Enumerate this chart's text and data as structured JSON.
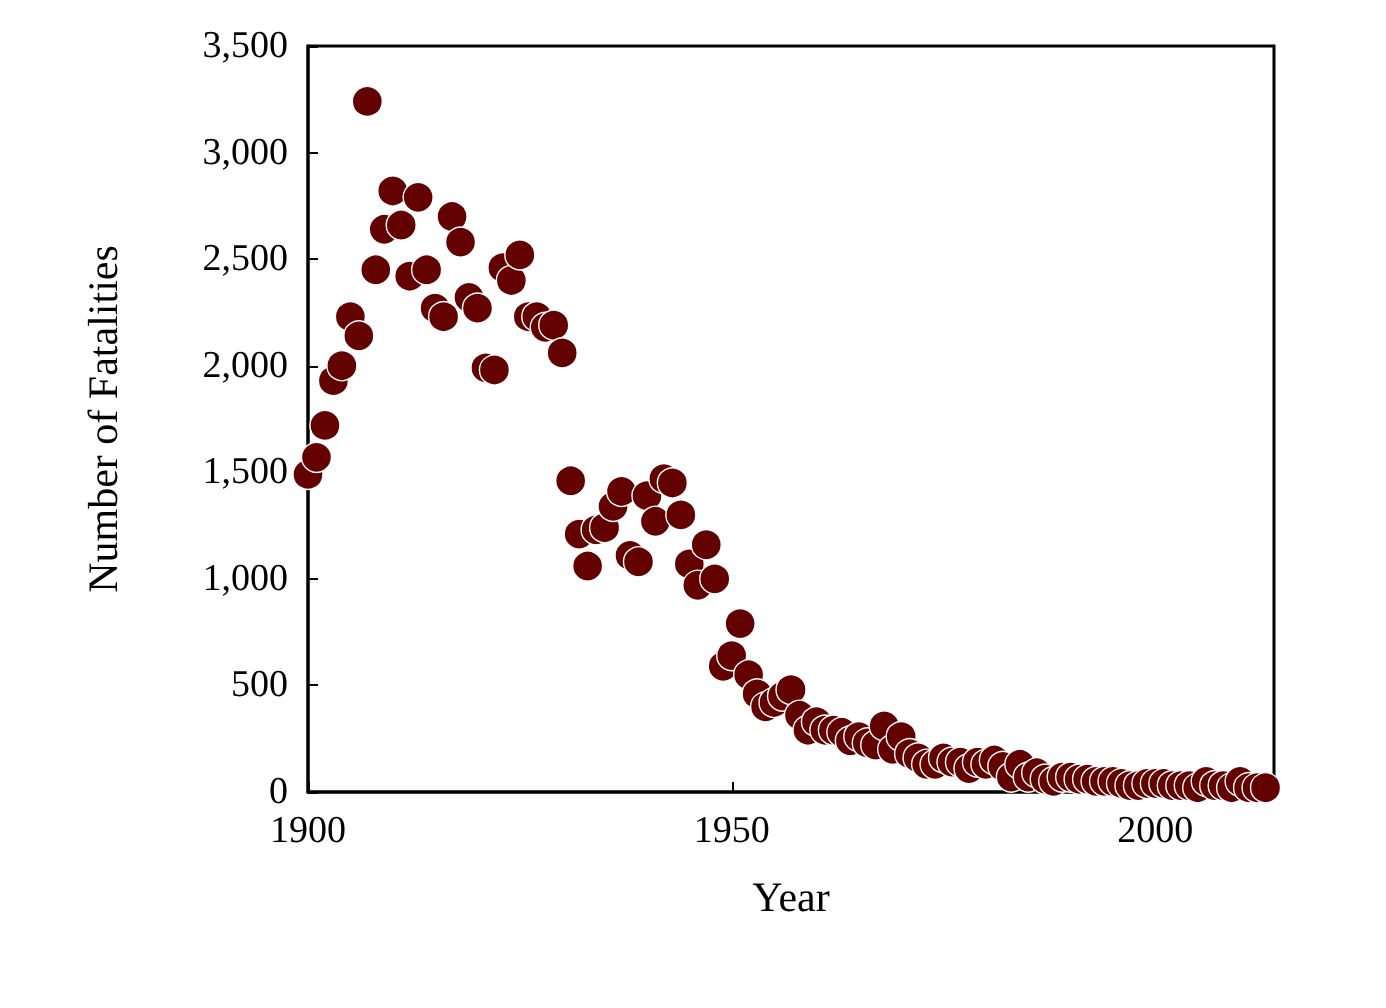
{
  "chart_data": {
    "type": "scatter",
    "xlabel": "Year",
    "ylabel": "Number of Fatalities",
    "marker": "circle",
    "grid": false,
    "xlim": [
      1900,
      2014
    ],
    "xticks": [
      1900,
      1950,
      2000
    ],
    "ylim": [
      0,
      3500
    ],
    "yticks": [
      {
        "value": 0,
        "label": "0"
      },
      {
        "value": 500,
        "label": "500"
      },
      {
        "value": 1000,
        "label": "1,000"
      },
      {
        "value": 1500,
        "label": "1,500"
      },
      {
        "value": 2000,
        "label": "2,000"
      },
      {
        "value": 2500,
        "label": "2,500"
      },
      {
        "value": 3000,
        "label": "3,000"
      },
      {
        "value": 3500,
        "label": "3,500"
      }
    ],
    "series": [
      {
        "color": "#630000",
        "x": [
          1900,
          1901,
          1902,
          1903,
          1904,
          1905,
          1906,
          1907,
          1908,
          1909,
          1910,
          1911,
          1912,
          1913,
          1914,
          1915,
          1916,
          1917,
          1918,
          1919,
          1920,
          1921,
          1922,
          1923,
          1924,
          1925,
          1926,
          1927,
          1928,
          1929,
          1930,
          1931,
          1932,
          1933,
          1934,
          1935,
          1936,
          1937,
          1938,
          1939,
          1940,
          1941,
          1942,
          1943,
          1944,
          1945,
          1946,
          1947,
          1948,
          1949,
          1950,
          1951,
          1952,
          1953,
          1954,
          1955,
          1956,
          1957,
          1958,
          1959,
          1960,
          1961,
          1962,
          1963,
          1964,
          1965,
          1966,
          1967,
          1968,
          1969,
          1970,
          1971,
          1972,
          1973,
          1974,
          1975,
          1976,
          1977,
          1978,
          1979,
          1980,
          1981,
          1982,
          1983,
          1984,
          1985,
          1986,
          1987,
          1988,
          1989,
          1990,
          1991,
          1992,
          1993,
          1994,
          1995,
          1996,
          1997,
          1998,
          1999,
          2000,
          2001,
          2002,
          2003,
          2004,
          2005,
          2006,
          2007,
          2008,
          2009,
          2010,
          2011,
          2012,
          2013
        ],
        "values": [
          1490,
          1570,
          1720,
          1930,
          2000,
          2230,
          2140,
          3240,
          2450,
          2640,
          2820,
          2660,
          2420,
          2790,
          2450,
          2270,
          2230,
          2700,
          2580,
          2320,
          2270,
          1990,
          1980,
          2460,
          2400,
          2520,
          2230,
          2230,
          2180,
          2190,
          2060,
          1460,
          1210,
          1060,
          1230,
          1240,
          1340,
          1410,
          1110,
          1080,
          1390,
          1270,
          1470,
          1450,
          1300,
          1070,
          970,
          1160,
          1000,
          590,
          640,
          790,
          550,
          460,
          400,
          420,
          450,
          480,
          360,
          290,
          330,
          290,
          290,
          280,
          240,
          260,
          230,
          220,
          310,
          200,
          260,
          180,
          160,
          130,
          130,
          160,
          140,
          140,
          110,
          140,
          130,
          150,
          120,
          70,
          130,
          70,
          90,
          60,
          50,
          70,
          70,
          60,
          60,
          50,
          50,
          50,
          40,
          30,
          30,
          40,
          40,
          40,
          30,
          30,
          30,
          20,
          50,
          30,
          30,
          20,
          50,
          20,
          20,
          20
        ]
      }
    ]
  }
}
